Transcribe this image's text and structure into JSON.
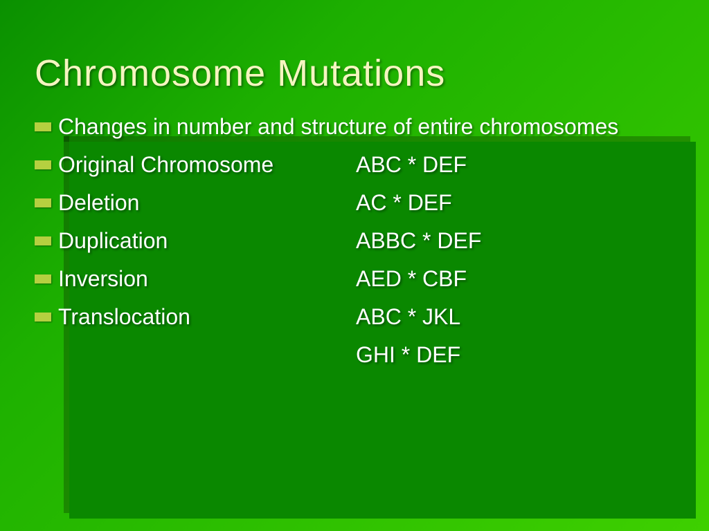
{
  "slide": {
    "title": "Chromosome Mutations",
    "title_color": "#f5f5c0",
    "title_fontsize": 54,
    "body_color": "#ffffff",
    "body_fontsize": 32,
    "bullet_color": "#b5d040",
    "background_gradient": [
      "#0a9000",
      "#1db000",
      "#3ed000"
    ],
    "shadow_box_color": "#0a8800",
    "items": [
      {
        "label": "Changes in number and structure of entire chromosomes",
        "value": "",
        "full": true,
        "bullet": true
      },
      {
        "label": "Original Chromosome",
        "value": "ABC * DEF",
        "full": false,
        "bullet": true
      },
      {
        "label": "Deletion",
        "value": "AC * DEF",
        "full": false,
        "bullet": true
      },
      {
        "label": "Duplication",
        "value": "ABBC * DEF",
        "full": false,
        "bullet": true
      },
      {
        "label": "Inversion",
        "value": "AED * CBF",
        "full": false,
        "bullet": true
      },
      {
        "label": "Translocation",
        "value": "ABC * JKL",
        "full": false,
        "bullet": true
      },
      {
        "label": "",
        "value": "GHI * DEF",
        "full": false,
        "bullet": false
      }
    ]
  }
}
